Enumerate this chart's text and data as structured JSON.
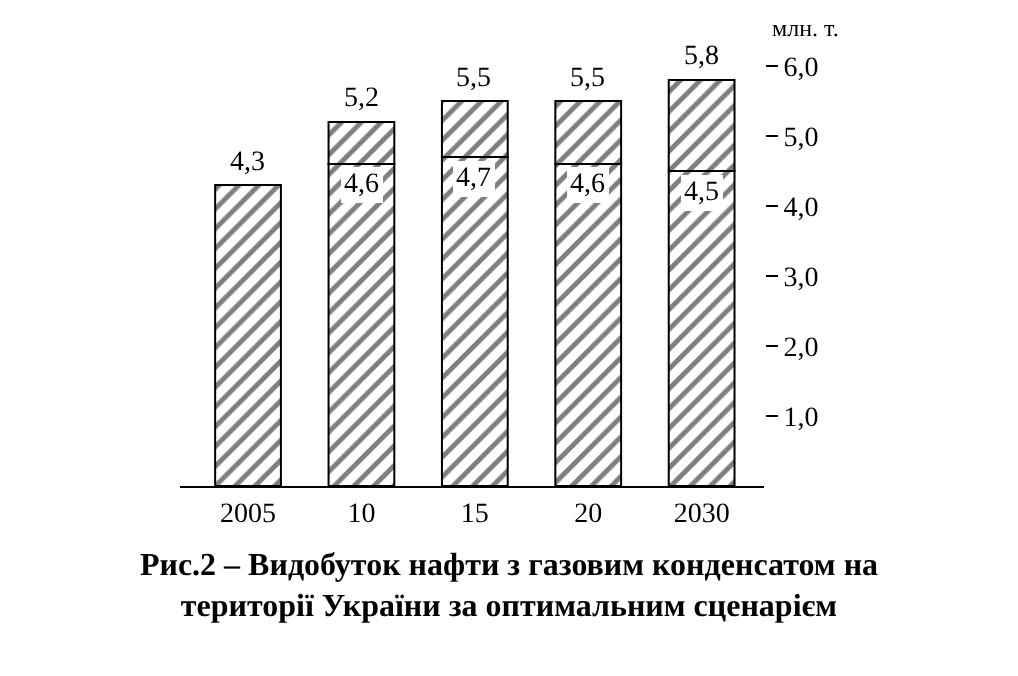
{
  "chart_data": {
    "type": "bar",
    "title": "Рис.2 – Видобуток нафти з газовим конденсатом на\nтериторії України за оптимальним сценарієм",
    "ylabel": "млн. т.",
    "categories": [
      "2005",
      "10",
      "15",
      "20",
      "2030"
    ],
    "stacked": true,
    "series": [
      {
        "color": "#000000",
        "values": [
          4.3,
          4.6,
          4.7,
          4.6,
          4.5
        ],
        "value_labels": [
          null,
          "4,6",
          "4,7",
          "4,6",
          "4,5"
        ]
      },
      {
        "color": "#000000",
        "values": [
          null,
          0.6,
          0.8,
          0.9,
          1.3
        ]
      }
    ],
    "totals": [
      "4,3",
      "5,2",
      "5,5",
      "5,5",
      "5,8"
    ],
    "ylim": [
      0,
      6
    ],
    "yticks": [
      {
        "value": 1,
        "label": "1,0"
      },
      {
        "value": 2,
        "label": "2,0"
      },
      {
        "value": 3,
        "label": "3,0"
      },
      {
        "value": 4,
        "label": "4,0"
      },
      {
        "value": 5,
        "label": "5,0"
      },
      {
        "value": 6,
        "label": "6,0"
      }
    ]
  }
}
